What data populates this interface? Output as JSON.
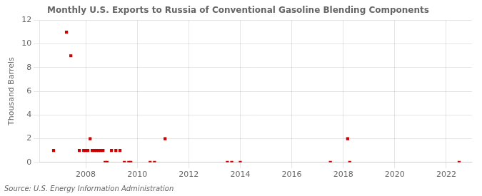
{
  "chart_data": {
    "type": "scatter",
    "title": "Monthly U.S. Exports to Russia of Conventional Gasoline Blending Components",
    "ylabel": "Thousand Barrels",
    "annotations": [
      "Source: U.S. Energy Information Administration"
    ],
    "color": "#cc0000",
    "marker": "square",
    "grid": true,
    "xlim": [
      2006.2,
      2023.0
    ],
    "xticks": [
      2008,
      2010,
      2012,
      2014,
      2016,
      2018,
      2020,
      2022
    ],
    "ylim": [
      0,
      12
    ],
    "yticks": [
      0,
      2,
      4,
      6,
      8,
      10,
      12
    ],
    "x": [
      2006.75,
      2007.25,
      2007.42,
      2007.75,
      2007.92,
      2008.0,
      2008.08,
      2008.17,
      2008.25,
      2008.33,
      2008.42,
      2008.5,
      2008.58,
      2008.67,
      2008.75,
      2008.83,
      2009.0,
      2009.17,
      2009.33,
      2009.5,
      2009.67,
      2009.75,
      2010.5,
      2010.67,
      2011.08,
      2013.5,
      2013.67,
      2014.0,
      2017.5,
      2018.17,
      2018.25,
      2022.5
    ],
    "values": [
      1,
      11,
      9,
      1,
      1,
      1,
      1,
      2,
      1,
      1,
      1,
      1,
      1,
      1,
      0,
      0,
      1,
      1,
      1,
      0,
      0,
      0,
      0,
      0,
      2,
      0,
      0,
      0,
      0,
      2,
      0,
      0
    ]
  }
}
